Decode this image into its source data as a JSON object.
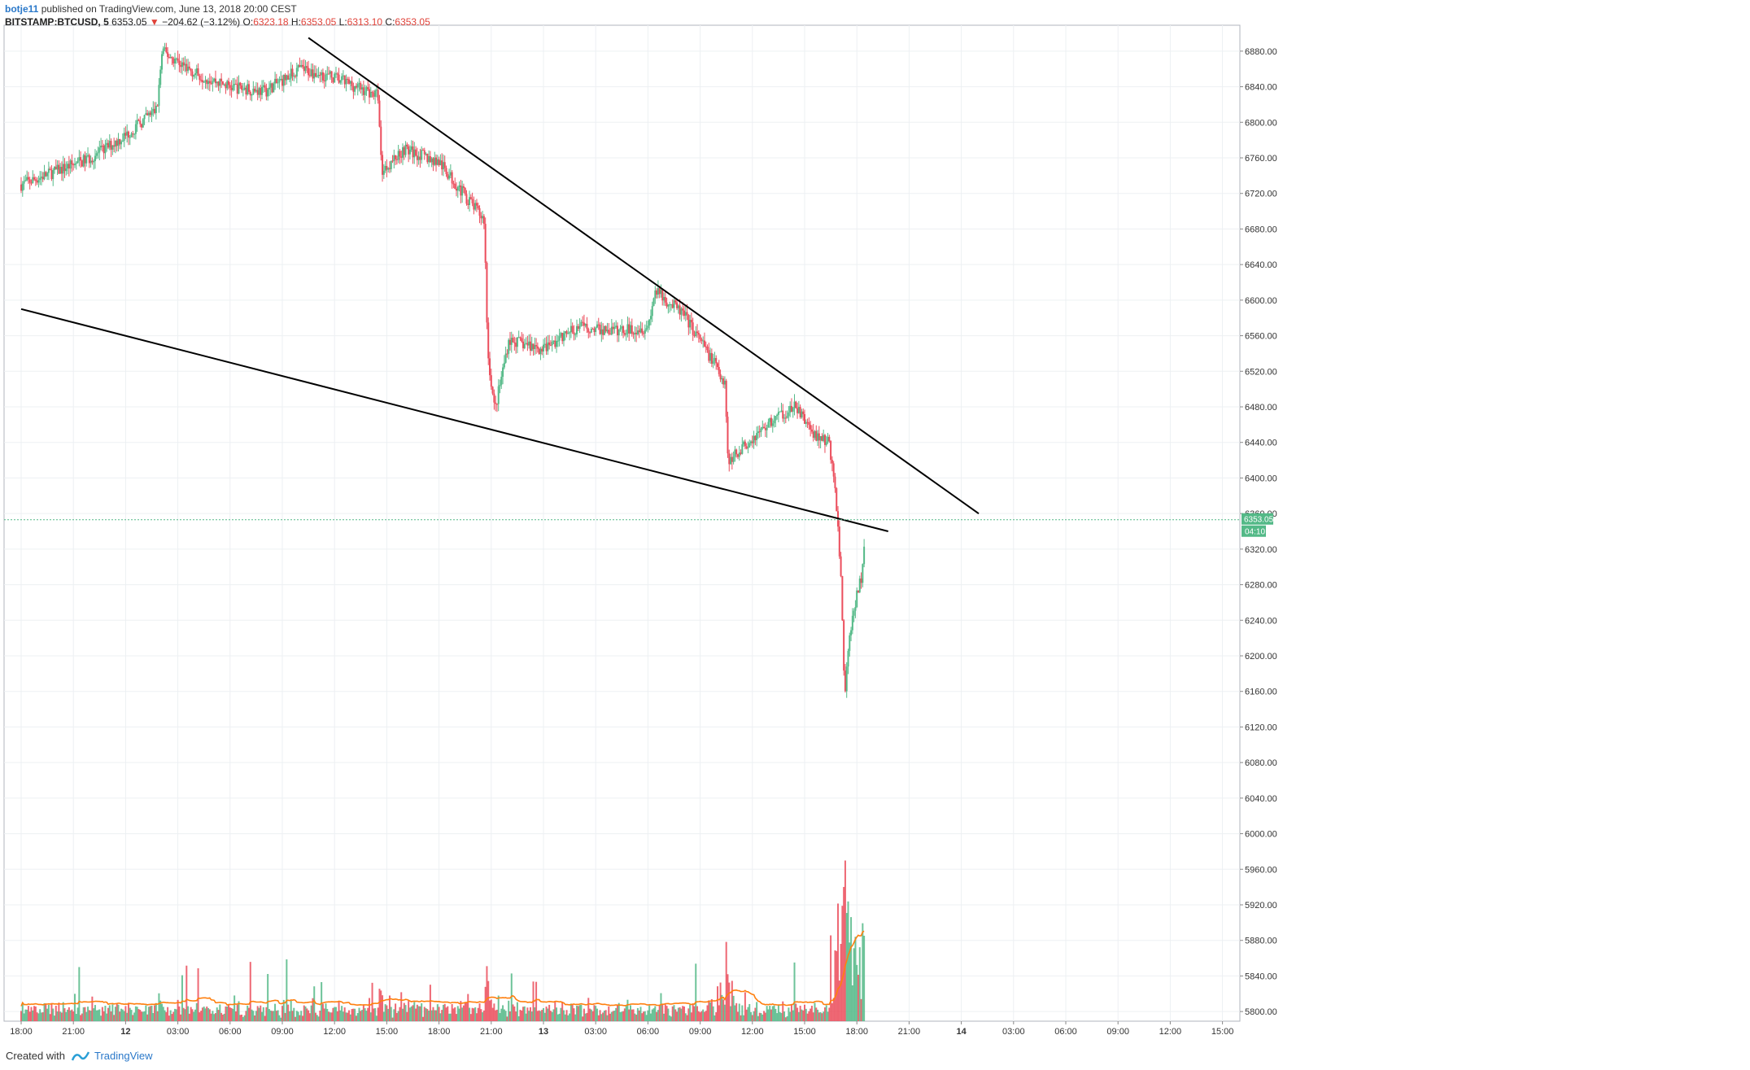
{
  "header": {
    "author": "botje11",
    "published": "published on TradingView.com, June 13, 2018 20:00 CEST",
    "symbol": "BITSTAMP:BTCUSD, 5",
    "last": "6353.05",
    "change": "−204.62 (−3.12%)",
    "o_label": "O:",
    "o": "6323.18",
    "h_label": "H:",
    "h": "6353.05",
    "l_label": "L:",
    "l": "6313.10",
    "c_label": "C:",
    "c": "6353.05"
  },
  "footer": {
    "created_with": "Created with",
    "brand": "TradingView"
  },
  "colors": {
    "up": "#53b987",
    "down": "#eb4d5c",
    "ma": "#ff7f0e",
    "trend": "#000000",
    "price_line": "#53b987"
  },
  "chart_data": {
    "type": "candlestick",
    "ylim": [
      5780,
      6900
    ],
    "y_ticks": [
      "6880.00",
      "6840.00",
      "6800.00",
      "6760.00",
      "6720.00",
      "6680.00",
      "6640.00",
      "6600.00",
      "6560.00",
      "6520.00",
      "6480.00",
      "6440.00",
      "6400.00",
      "6360.00",
      "6320.00",
      "6280.00",
      "6240.00",
      "6200.00",
      "6160.00",
      "6120.00",
      "6080.00",
      "6040.00",
      "6000.00",
      "5960.00",
      "5920.00",
      "5880.00",
      "5840.00",
      "5800.00"
    ],
    "x_ticks": [
      "18:00",
      "21:00",
      "12",
      "03:00",
      "06:00",
      "09:00",
      "12:00",
      "15:00",
      "18:00",
      "21:00",
      "13",
      "03:00",
      "06:00",
      "09:00",
      "12:00",
      "15:00",
      "18:00",
      "21:00",
      "14",
      "03:00",
      "06:00",
      "09:00",
      "12:00",
      "15:00"
    ],
    "price_path": [
      {
        "t": 0,
        "p": 6730
      },
      {
        "t": 2,
        "p": 6745
      },
      {
        "t": 4,
        "p": 6760
      },
      {
        "t": 6,
        "p": 6785
      },
      {
        "t": 7.8,
        "p": 6815
      },
      {
        "t": 8.1,
        "p": 6880
      },
      {
        "t": 10,
        "p": 6855
      },
      {
        "t": 12,
        "p": 6840
      },
      {
        "t": 14,
        "p": 6835
      },
      {
        "t": 16,
        "p": 6860
      },
      {
        "t": 18,
        "p": 6850
      },
      {
        "t": 20.5,
        "p": 6830
      },
      {
        "t": 20.7,
        "p": 6745
      },
      {
        "t": 22,
        "p": 6770
      },
      {
        "t": 24,
        "p": 6755
      },
      {
        "t": 26.6,
        "p": 6690
      },
      {
        "t": 26.8,
        "p": 6540
      },
      {
        "t": 27.2,
        "p": 6475
      },
      {
        "t": 28,
        "p": 6555
      },
      {
        "t": 30,
        "p": 6545
      },
      {
        "t": 32,
        "p": 6570
      },
      {
        "t": 34,
        "p": 6565
      },
      {
        "t": 36,
        "p": 6570
      },
      {
        "t": 36.4,
        "p": 6610
      },
      {
        "t": 38,
        "p": 6585
      },
      {
        "t": 39.3,
        "p": 6545
      },
      {
        "t": 40.4,
        "p": 6510
      },
      {
        "t": 40.6,
        "p": 6420
      },
      {
        "t": 42,
        "p": 6445
      },
      {
        "t": 43.5,
        "p": 6470
      },
      {
        "t": 44.5,
        "p": 6480
      },
      {
        "t": 45.5,
        "p": 6450
      },
      {
        "t": 46.4,
        "p": 6440
      },
      {
        "t": 46.8,
        "p": 6380
      },
      {
        "t": 47.1,
        "p": 6280
      },
      {
        "t": 47.3,
        "p": 6160
      },
      {
        "t": 47.7,
        "p": 6240
      },
      {
        "t": 48,
        "p": 6270
      },
      {
        "t": 48.3,
        "p": 6290
      },
      {
        "t": 48.5,
        "p": 6353
      }
    ],
    "ma_level_hint": [
      5805,
      5875
    ],
    "last_price": "6353.05",
    "countdown": "04:10",
    "trendlines": [
      {
        "from": {
          "t": 16.5,
          "p": 6895
        },
        "to": {
          "t": 55.0,
          "p": 6360
        }
      },
      {
        "from": {
          "t": 0.0,
          "p": 6590
        },
        "to": {
          "t": 49.8,
          "p": 6340
        }
      }
    ]
  }
}
